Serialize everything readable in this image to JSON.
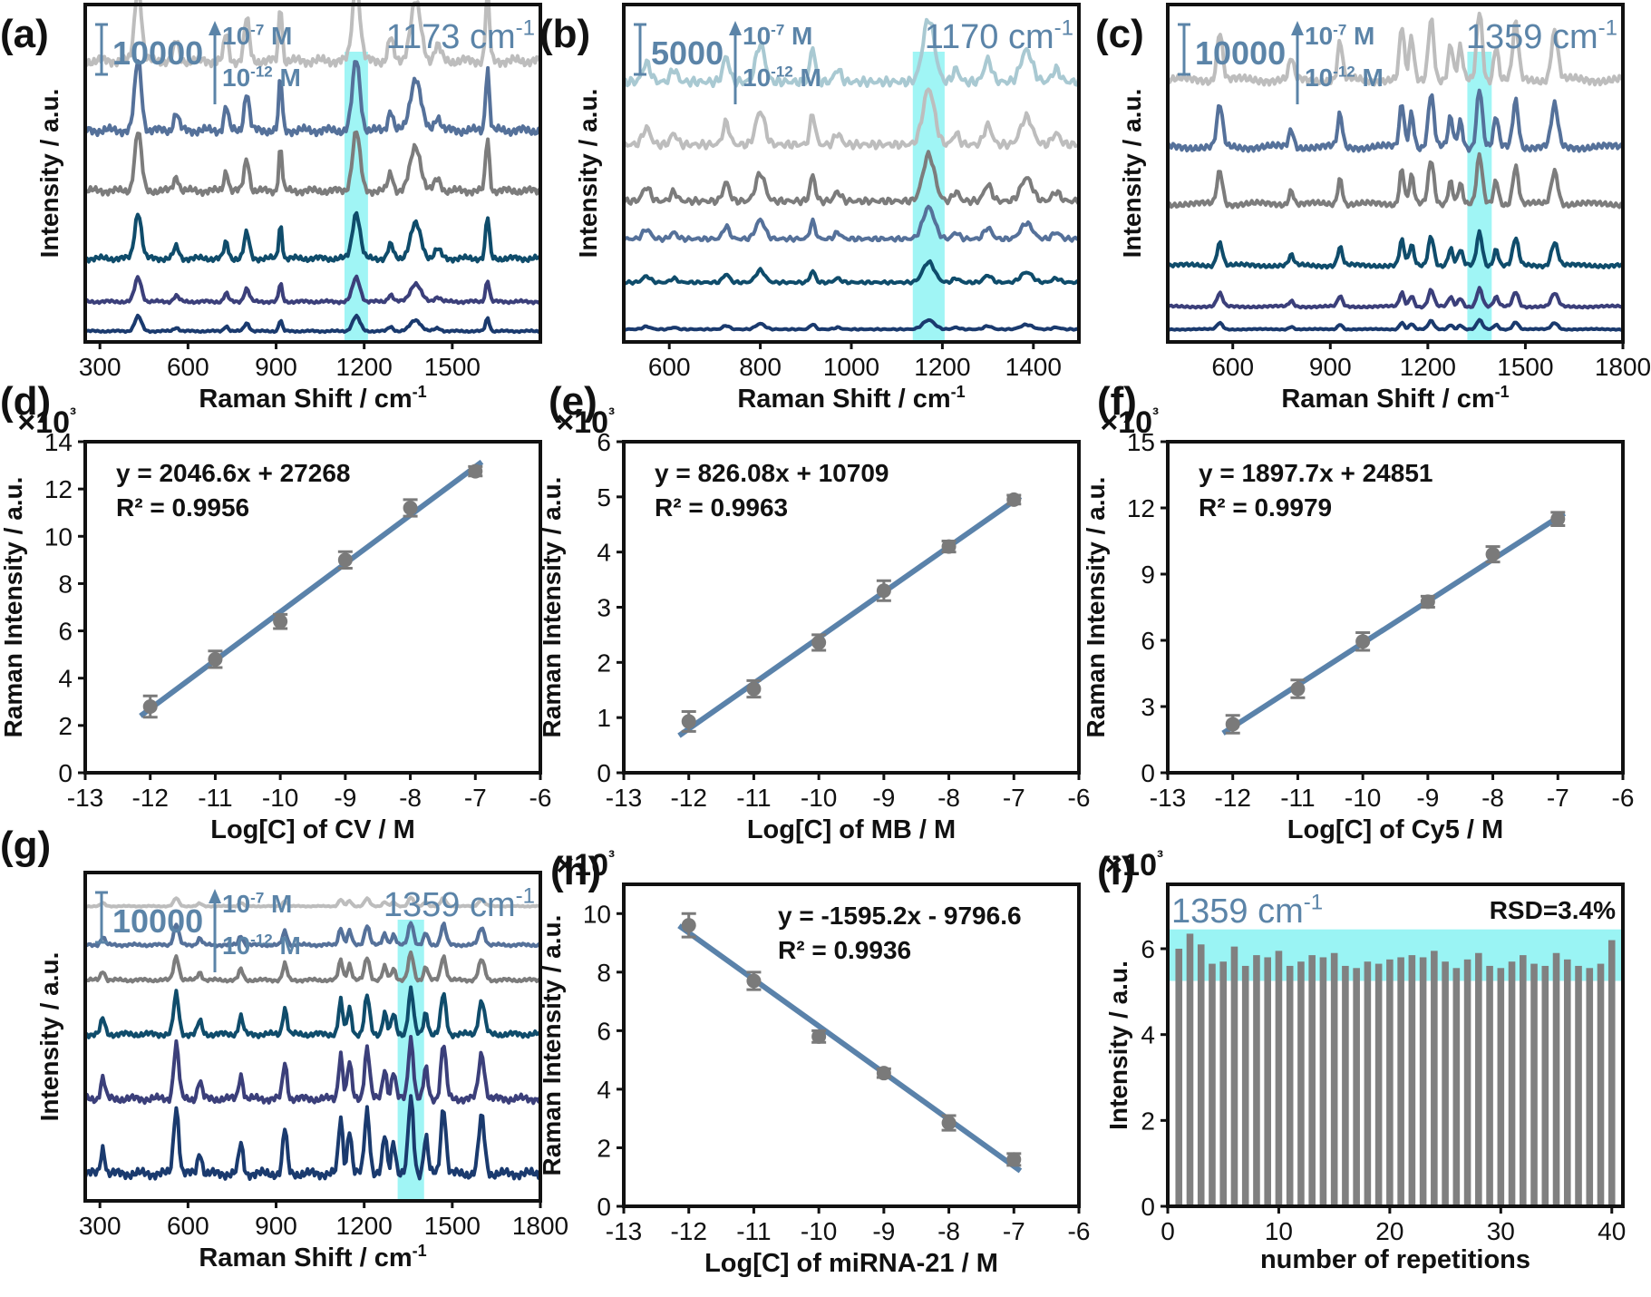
{
  "figure": {
    "colors": {
      "highlight": "#8ff3f3",
      "annotation": "#5b84a8",
      "fit_line": "#5a82aa",
      "marker": "#7a7a7a",
      "axis": "#111111",
      "bar": "#808080",
      "spectra": [
        "#1a3a6e",
        "#3b3f7a",
        "#0f4c6b",
        "#7c7c7c",
        "#55719a",
        "#bdbdbd",
        "#a9c9d2"
      ]
    }
  },
  "chart_data": [
    {
      "panel": "(a)",
      "type": "line",
      "xlabel": "Raman Shift / cm-1",
      "ylabel": "Intensity / a.u.",
      "xlim": [
        250,
        1800
      ],
      "xticks": [
        300,
        600,
        900,
        1200,
        1500
      ],
      "highlight_center": 1173,
      "highlight_width": 80,
      "annotations": {
        "scale": "10000",
        "conc_high": "10-7 M",
        "conc_low": "10-12 M",
        "peak": "1173 cm-1"
      },
      "peaks": [
        [
          430,
          1.0,
          16
        ],
        [
          560,
          0.25,
          12
        ],
        [
          730,
          0.35,
          10
        ],
        [
          800,
          0.55,
          12
        ],
        [
          915,
          0.75,
          8
        ],
        [
          1173,
          1.0,
          18
        ],
        [
          1290,
          0.3,
          12
        ],
        [
          1375,
          0.75,
          25
        ],
        [
          1450,
          0.2,
          15
        ],
        [
          1620,
          0.9,
          9
        ]
      ],
      "series": [
        {
          "name": "",
          "offset": 0.02,
          "amp": 0.08,
          "color": "#1a3a6e"
        },
        {
          "name": "",
          "offset": 0.1,
          "amp": 0.13,
          "color": "#3b3f7a"
        },
        {
          "name": "",
          "offset": 0.21,
          "amp": 0.25,
          "color": "#0f4c6b"
        },
        {
          "name": "",
          "offset": 0.4,
          "amp": 0.32,
          "color": "#7c7c7c"
        },
        {
          "name": "",
          "offset": 0.57,
          "amp": 0.38,
          "color": "#55719a"
        },
        {
          "name": "",
          "offset": 0.77,
          "amp": 0.42,
          "color": "#bdbdbd"
        }
      ]
    },
    {
      "panel": "(b)",
      "type": "line",
      "xlabel": "Raman Shift / cm-1",
      "ylabel": "Intensity / a.u.",
      "xlim": [
        500,
        1500
      ],
      "xticks": [
        600,
        800,
        1000,
        1200,
        1400
      ],
      "highlight_center": 1170,
      "highlight_width": 70,
      "annotations": {
        "scale": "5000",
        "conc_high": "10-7 M",
        "conc_low": "10-12 M",
        "peak": "1170 cm-1"
      },
      "peaks": [
        [
          550,
          0.3,
          12
        ],
        [
          610,
          0.2,
          10
        ],
        [
          725,
          0.4,
          10
        ],
        [
          800,
          0.6,
          14
        ],
        [
          915,
          0.55,
          8
        ],
        [
          970,
          0.2,
          10
        ],
        [
          1170,
          1.0,
          18
        ],
        [
          1230,
          0.2,
          10
        ],
        [
          1300,
          0.35,
          12
        ],
        [
          1385,
          0.5,
          18
        ],
        [
          1450,
          0.2,
          12
        ]
      ],
      "series": [
        {
          "name": "",
          "offset": 0.03,
          "amp": 0.05,
          "color": "#1a3a6e"
        },
        {
          "name": "",
          "offset": 0.16,
          "amp": 0.11,
          "color": "#0f4c6b"
        },
        {
          "name": "",
          "offset": 0.28,
          "amp": 0.17,
          "color": "#55719a"
        },
        {
          "name": "",
          "offset": 0.38,
          "amp": 0.25,
          "color": "#7c7c7c"
        },
        {
          "name": "",
          "offset": 0.54,
          "amp": 0.3,
          "color": "#bdbdbd"
        },
        {
          "name": "",
          "offset": 0.72,
          "amp": 0.34,
          "color": "#a9c9d2"
        }
      ]
    },
    {
      "panel": "(c)",
      "type": "line",
      "xlabel": "Raman Shift / cm-1",
      "ylabel": "Intensity / a.u.",
      "xlim": [
        400,
        1800
      ],
      "xticks": [
        600,
        900,
        1200,
        1500,
        1800
      ],
      "highlight_center": 1359,
      "highlight_width": 75,
      "annotations": {
        "scale": "10000",
        "conc_high": "10-7 M",
        "conc_low": "10-12 M",
        "peak": "1359 cm-1"
      },
      "peaks": [
        [
          560,
          0.7,
          12
        ],
        [
          780,
          0.3,
          10
        ],
        [
          930,
          0.55,
          10
        ],
        [
          1120,
          0.75,
          10
        ],
        [
          1150,
          0.6,
          10
        ],
        [
          1210,
          0.9,
          12
        ],
        [
          1270,
          0.5,
          10
        ],
        [
          1300,
          0.45,
          10
        ],
        [
          1359,
          1.0,
          12
        ],
        [
          1410,
          0.5,
          10
        ],
        [
          1470,
          0.8,
          12
        ],
        [
          1590,
          0.7,
          14
        ]
      ],
      "series": [
        {
          "name": "",
          "offset": 0.03,
          "amp": 0.05,
          "color": "#1a3a6e"
        },
        {
          "name": "",
          "offset": 0.09,
          "amp": 0.1,
          "color": "#3b3f7a"
        },
        {
          "name": "",
          "offset": 0.2,
          "amp": 0.18,
          "color": "#0f4c6b"
        },
        {
          "name": "",
          "offset": 0.37,
          "amp": 0.26,
          "color": "#7c7c7c"
        },
        {
          "name": "",
          "offset": 0.53,
          "amp": 0.32,
          "color": "#55719a"
        },
        {
          "name": "",
          "offset": 0.72,
          "amp": 0.38,
          "color": "#bdbdbd"
        }
      ]
    },
    {
      "panel": "(d)",
      "type": "scatter",
      "multiplier": "×10³",
      "xlabel": "Log[C] of CV / M",
      "ylabel": "Raman Intensity / a.u.",
      "xlim": [
        -13,
        -6
      ],
      "ylim": [
        0,
        14
      ],
      "xticks": [
        -13,
        -12,
        -11,
        -10,
        -9,
        -8,
        -7,
        -6
      ],
      "yticks": [
        0,
        2,
        4,
        6,
        8,
        10,
        12,
        14
      ],
      "equation": "y = 2046.6x + 27268",
      "r2": "R² = 0.9956",
      "fit": {
        "slope": 2.0466,
        "intercept": 27.268
      },
      "x": [
        -12,
        -11,
        -10,
        -9,
        -8,
        -7
      ],
      "y": [
        2.8,
        4.8,
        6.4,
        9.0,
        11.2,
        12.75
      ],
      "err": [
        0.45,
        0.35,
        0.3,
        0.35,
        0.35,
        0.2
      ]
    },
    {
      "panel": "(e)",
      "type": "scatter",
      "multiplier": "×10³",
      "xlabel": "Log[C] of MB / M",
      "ylabel": "Raman Intensity / a.u.",
      "xlim": [
        -13,
        -6
      ],
      "ylim": [
        0,
        6
      ],
      "xticks": [
        -13,
        -12,
        -11,
        -10,
        -9,
        -8,
        -7,
        -6
      ],
      "yticks": [
        0,
        1,
        2,
        3,
        4,
        5,
        6
      ],
      "equation": "y = 826.08x + 10709",
      "r2": "R² = 0.9963",
      "fit": {
        "slope": 0.82608,
        "intercept": 10.709
      },
      "x": [
        -12,
        -11,
        -10,
        -9,
        -8,
        -7
      ],
      "y": [
        0.93,
        1.52,
        2.36,
        3.3,
        4.1,
        4.95
      ],
      "err": [
        0.18,
        0.15,
        0.14,
        0.18,
        0.1,
        0.08
      ]
    },
    {
      "panel": "(f)",
      "type": "scatter",
      "multiplier": "×10³",
      "xlabel": "Log[C] of Cy5 / M",
      "ylabel": "Raman Intensity / a.u.",
      "xlim": [
        -13,
        -6
      ],
      "ylim": [
        0,
        15
      ],
      "xticks": [
        -13,
        -12,
        -11,
        -10,
        -9,
        -8,
        -7,
        -6
      ],
      "yticks": [
        0,
        3,
        6,
        9,
        12,
        15
      ],
      "equation": "y = 1897.7x + 24851",
      "r2": "R² = 0.9979",
      "fit": {
        "slope": 1.8977,
        "intercept": 24.851
      },
      "x": [
        -12,
        -11,
        -10,
        -9,
        -8,
        -7
      ],
      "y": [
        2.2,
        3.8,
        5.95,
        7.75,
        9.9,
        11.5
      ],
      "err": [
        0.4,
        0.4,
        0.4,
        0.25,
        0.35,
        0.3
      ]
    },
    {
      "panel": "(g)",
      "type": "line",
      "xlabel": "Raman Shift / cm-1",
      "ylabel": "Intensity / a.u.",
      "xlim": [
        250,
        1800
      ],
      "xticks": [
        300,
        600,
        900,
        1200,
        1500,
        1800
      ],
      "highlight_center": 1359,
      "highlight_width": 90,
      "annotations": {
        "scale": "10000",
        "conc_high": "10-7 M",
        "conc_low": "10-12 M",
        "peak": "1359 cm-1"
      },
      "peaks": [
        [
          310,
          0.35,
          10
        ],
        [
          560,
          0.9,
          12
        ],
        [
          640,
          0.3,
          10
        ],
        [
          780,
          0.4,
          10
        ],
        [
          930,
          0.6,
          10
        ],
        [
          1120,
          0.75,
          10
        ],
        [
          1150,
          0.6,
          10
        ],
        [
          1210,
          0.85,
          12
        ],
        [
          1270,
          0.5,
          10
        ],
        [
          1300,
          0.45,
          10
        ],
        [
          1359,
          1.0,
          12
        ],
        [
          1410,
          0.5,
          10
        ],
        [
          1470,
          0.9,
          12
        ],
        [
          1600,
          0.75,
          14
        ]
      ],
      "series": [
        {
          "name": "",
          "offset": 0.02,
          "amp": 0.42,
          "color": "#1a3a6e"
        },
        {
          "name": "",
          "offset": 0.26,
          "amp": 0.34,
          "color": "#3b3f7a"
        },
        {
          "name": "",
          "offset": 0.47,
          "amp": 0.25,
          "color": "#0f4c6b"
        },
        {
          "name": "",
          "offset": 0.65,
          "amp": 0.15,
          "color": "#7c7c7c"
        },
        {
          "name": "",
          "offset": 0.76,
          "amp": 0.13,
          "color": "#55719a"
        },
        {
          "name": "",
          "offset": 0.89,
          "amp": 0.05,
          "color": "#bdbdbd"
        }
      ]
    },
    {
      "panel": "(h)",
      "type": "scatter",
      "multiplier": "×10³",
      "xlabel": "Log[C] of miRNA-21 / M",
      "ylabel": "Raman Intensity / a.u.",
      "xlim": [
        -13,
        -6
      ],
      "ylim": [
        0,
        11
      ],
      "xticks": [
        -13,
        -12,
        -11,
        -10,
        -9,
        -8,
        -7,
        -6
      ],
      "yticks": [
        0,
        2,
        4,
        6,
        8,
        10
      ],
      "equation": "y = -1595.2x - 9796.6",
      "r2": "R² = 0.9936",
      "fit": {
        "slope": -1.5952,
        "intercept": -9.7966
      },
      "x": [
        -12,
        -11,
        -10,
        -9,
        -8,
        -7
      ],
      "y": [
        9.6,
        7.7,
        5.8,
        4.55,
        2.85,
        1.6
      ],
      "err": [
        0.4,
        0.3,
        0.2,
        0.15,
        0.25,
        0.2
      ]
    },
    {
      "panel": "(i)",
      "type": "bar",
      "multiplier": "×10³",
      "xlabel": "number of repetitions",
      "ylabel": "Intensity / a.u.",
      "xlim": [
        0,
        41
      ],
      "ylim": [
        0,
        7.5
      ],
      "xticks": [
        0,
        10,
        20,
        30,
        40
      ],
      "yticks": [
        0,
        2,
        4,
        6
      ],
      "peak": "1359 cm-1",
      "rsd": "RSD=3.4%",
      "highlight_band": [
        5.25,
        6.45
      ],
      "x": [
        1,
        2,
        3,
        4,
        5,
        6,
        7,
        8,
        9,
        10,
        11,
        12,
        13,
        14,
        15,
        16,
        17,
        18,
        19,
        20,
        21,
        22,
        23,
        24,
        25,
        26,
        27,
        28,
        29,
        30,
        31,
        32,
        33,
        34,
        35,
        36,
        37,
        38,
        39,
        40
      ],
      "values": [
        6.0,
        6.35,
        6.1,
        5.65,
        5.7,
        6.05,
        5.6,
        5.85,
        5.8,
        5.95,
        5.6,
        5.7,
        5.85,
        5.8,
        5.9,
        5.6,
        5.55,
        5.7,
        5.65,
        5.75,
        5.8,
        5.85,
        5.8,
        5.95,
        5.7,
        5.55,
        5.75,
        5.9,
        5.6,
        5.55,
        5.7,
        5.85,
        5.65,
        5.6,
        5.9,
        5.75,
        5.6,
        5.55,
        5.65,
        6.2
      ]
    }
  ]
}
